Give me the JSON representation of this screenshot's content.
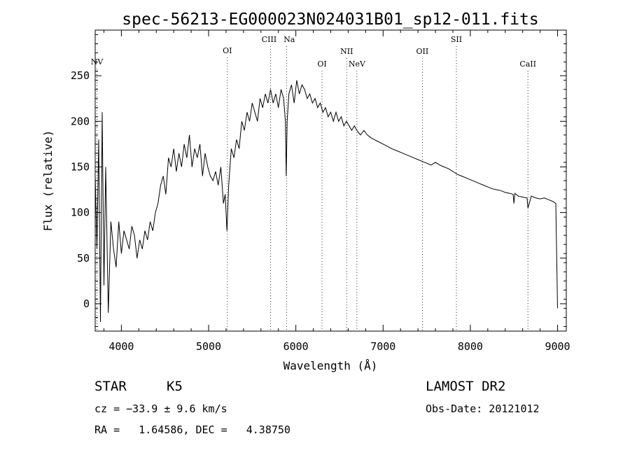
{
  "chart_data": {
    "type": "line",
    "title": "spec-56213-EG000023N024031B01_sp12-011.fits",
    "xlabel": "Wavelength (Å)",
    "ylabel": "Flux (relative)",
    "xlim": [
      3700,
      9100
    ],
    "ylim": [
      -30,
      300
    ],
    "xticks": [
      4000,
      5000,
      6000,
      7000,
      8000,
      9000
    ],
    "yticks": [
      0,
      50,
      100,
      150,
      200,
      250
    ],
    "grid": false,
    "lines": [
      {
        "name": "NV",
        "x": 3720
      },
      {
        "name": "OI",
        "x": 5215
      },
      {
        "name": "CIII",
        "x": 5710
      },
      {
        "name": "Na",
        "x": 5893
      },
      {
        "name": "OI",
        "x": 6300
      },
      {
        "name": "NII",
        "x": 6583
      },
      {
        "name": "NeV",
        "x": 6700
      },
      {
        "name": "OII",
        "x": 7450
      },
      {
        "name": "SII",
        "x": 7840
      },
      {
        "name": "CaII",
        "x": 8660
      }
    ],
    "series": [
      {
        "x": [
          3700,
          3720,
          3740,
          3760,
          3780,
          3800,
          3820,
          3850,
          3880,
          3910,
          3940,
          3970,
          4000,
          4030,
          4060,
          4090,
          4120,
          4150,
          4180,
          4210,
          4240,
          4270,
          4300,
          4330,
          4360,
          4390,
          4420,
          4450,
          4480,
          4510,
          4540,
          4570,
          4600,
          4630,
          4660,
          4690,
          4720,
          4750,
          4780,
          4810,
          4840,
          4870,
          4900,
          4930,
          4960,
          4990,
          5020,
          5050,
          5080,
          5110,
          5140,
          5170,
          5190,
          5210,
          5230,
          5260,
          5290,
          5320,
          5350,
          5380,
          5410,
          5440,
          5470,
          5500,
          5530,
          5560,
          5590,
          5620,
          5650,
          5680,
          5710,
          5740,
          5770,
          5800,
          5830,
          5860,
          5880,
          5890,
          5900,
          5920,
          5950,
          5980,
          6010,
          6040,
          6070,
          6100,
          6130,
          6160,
          6190,
          6220,
          6250,
          6280,
          6310,
          6340,
          6370,
          6400,
          6430,
          6460,
          6490,
          6520,
          6550,
          6580,
          6610,
          6640,
          6670,
          6700,
          6740,
          6780,
          6820,
          6860,
          6900,
          6940,
          6980,
          7020,
          7060,
          7100,
          7150,
          7200,
          7250,
          7300,
          7350,
          7400,
          7450,
          7500,
          7550,
          7600,
          7650,
          7700,
          7750,
          7800,
          7850,
          7900,
          7950,
          8000,
          8050,
          8100,
          8150,
          8200,
          8250,
          8300,
          8350,
          8400,
          8450,
          8490,
          8500,
          8510,
          8550,
          8600,
          8650,
          8660,
          8700,
          8750,
          8800,
          8850,
          8900,
          8950,
          8980,
          8990,
          9000
        ],
        "y": [
          140,
          60,
          180,
          -20,
          210,
          20,
          150,
          -10,
          90,
          60,
          40,
          90,
          55,
          80,
          70,
          60,
          85,
          75,
          50,
          70,
          60,
          80,
          70,
          90,
          80,
          100,
          110,
          130,
          140,
          120,
          160,
          150,
          170,
          145,
          165,
          150,
          175,
          160,
          185,
          150,
          170,
          160,
          175,
          140,
          165,
          150,
          140,
          135,
          145,
          130,
          150,
          110,
          120,
          80,
          130,
          170,
          160,
          180,
          170,
          200,
          190,
          210,
          200,
          220,
          210,
          200,
          225,
          215,
          230,
          220,
          235,
          220,
          230,
          215,
          235,
          225,
          200,
          140,
          200,
          230,
          240,
          220,
          245,
          230,
          240,
          235,
          225,
          230,
          220,
          225,
          215,
          220,
          210,
          215,
          205,
          210,
          200,
          210,
          200,
          205,
          195,
          200,
          195,
          190,
          195,
          190,
          185,
          190,
          185,
          182,
          180,
          178,
          176,
          174,
          172,
          170,
          168,
          166,
          164,
          162,
          160,
          158,
          156,
          154,
          152,
          155,
          152,
          150,
          148,
          145,
          142,
          140,
          138,
          136,
          134,
          132,
          130,
          128,
          126,
          125,
          124,
          122,
          121,
          120,
          110,
          121,
          118,
          117,
          116,
          105,
          118,
          116,
          115,
          116,
          114,
          112,
          110,
          50,
          -5
        ]
      }
    ]
  },
  "info": {
    "object_class": "STAR",
    "subclass": "K5",
    "survey": "LAMOST DR2",
    "cz": "cz = −33.9 ± 9.6 km/s",
    "obs_date": "Obs-Date: 20121012",
    "coords": "RA =   1.64586, DEC =   4.38750"
  }
}
